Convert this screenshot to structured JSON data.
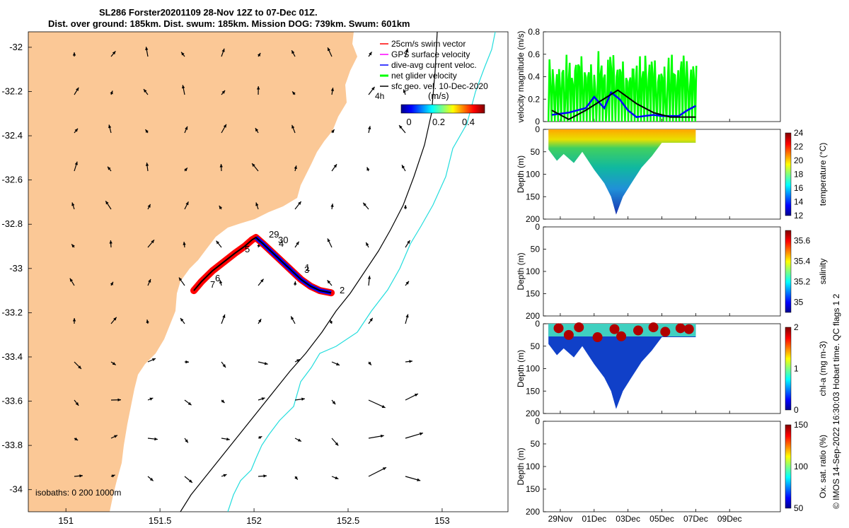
{
  "header": {
    "title_line1": "SL286 Forster20201109 28-Nov 12Z to 07-Dec 01Z.",
    "title_line2": "Dist. over ground: 185km. Dist. swum: 185km. Mission DOG: 739km. Swum: 601km"
  },
  "side_note": "© IMOS 14-Sep-2022 16:30:03 Hobart time. QC flags 1  2",
  "map": {
    "legend": [
      {
        "label": "25cm/s swim vector",
        "color": "#ff0000"
      },
      {
        "label": "GPS surface velocity",
        "color": "#ff00ff"
      },
      {
        "label": "dive-avg current veloc.",
        "color": "#0000ff"
      },
      {
        "label": "net glider velocity",
        "color": "#00ff00"
      },
      {
        "label": "sfc geo. vel. 10-Dec-2020",
        "color": "#000000"
      }
    ],
    "interval_label": "4h",
    "colorbar_unit": "(m/s)",
    "colorbar_ticks": [
      "0",
      "0.2",
      "0.4"
    ],
    "isobath_label": "isobaths: 0  200  1000m",
    "day_labels": [
      "29",
      "30",
      "4",
      "3",
      "1",
      "2",
      "5",
      "6",
      "7"
    ],
    "land_color": "#fbc896",
    "isobath_200_color": "#000000",
    "isobath_1000_color": "#22dddd"
  },
  "chart_data": [
    {
      "type": "scatter",
      "title": "Glider track map",
      "xlim": [
        150.8,
        153.35
      ],
      "ylim": [
        -34.1,
        -31.93
      ],
      "x_ticks": [
        "151",
        "151.5",
        "152",
        "152.5",
        "153"
      ],
      "y_ticks": [
        "-32",
        "-32.2",
        "-32.4",
        "-32.6",
        "-32.8",
        "-33",
        "-33.2",
        "-33.4",
        "-33.6",
        "-33.8",
        "-34"
      ],
      "track": {
        "lon": [
          151.68,
          151.72,
          151.78,
          151.84,
          151.9,
          151.95,
          151.99,
          152.01,
          152.05,
          152.1,
          152.15,
          152.2,
          152.25,
          152.3,
          152.35,
          152.41
        ],
        "lat": [
          -33.1,
          -33.06,
          -33.01,
          -32.97,
          -32.93,
          -32.9,
          -32.87,
          -32.86,
          -32.89,
          -32.93,
          -32.97,
          -33.01,
          -33.05,
          -33.08,
          -33.1,
          -33.11
        ]
      }
    },
    {
      "type": "line",
      "ylabel": "velocity magnitude (m/s)",
      "ylim": [
        0,
        0.8
      ],
      "y_ticks": [
        "0",
        "0.2",
        "0.4",
        "0.6",
        "0.8"
      ],
      "x_range_days": [
        0,
        14
      ],
      "series": [
        {
          "name": "net glider velocity",
          "color": "#00ff00",
          "x": [
            0.5,
            1.5,
            2.5,
            3.5,
            4.5,
            5.5,
            6.5,
            7.5,
            8.5,
            9.0
          ],
          "values": [
            0.35,
            0.42,
            0.5,
            0.35,
            0.55,
            0.48,
            0.62,
            0.45,
            0.38,
            0.3
          ]
        },
        {
          "name": "dive-avg current veloc.",
          "color": "#0000ff",
          "x": [
            0.5,
            1.5,
            2.5,
            3.0,
            3.6,
            4.0,
            4.5,
            5.0,
            5.5,
            6.0,
            6.5,
            7.0,
            7.5,
            8.0,
            8.5,
            9.0
          ],
          "values": [
            0.06,
            0.08,
            0.12,
            0.22,
            0.12,
            0.26,
            0.2,
            0.1,
            0.04,
            0.05,
            0.06,
            0.05,
            0.05,
            0.05,
            0.1,
            0.14
          ]
        },
        {
          "name": "sfc geo. vel.",
          "color": "#000000",
          "x": [
            0.5,
            1.5,
            2.5,
            4.4,
            5.5,
            6.5,
            7.5,
            9.0
          ],
          "values": [
            0.1,
            0.02,
            0.1,
            0.28,
            0.16,
            0.08,
            0.04,
            0.04
          ]
        }
      ]
    },
    {
      "type": "heatmap",
      "quantity": "temperature (°C)",
      "ylabel": "Depth (m)",
      "ylim": [
        200,
        0
      ],
      "y_ticks": [
        "0",
        "50",
        "100",
        "150",
        "200"
      ],
      "colorbar_ticks": [
        "12",
        "14",
        "16",
        "18",
        "20",
        "22",
        "24"
      ],
      "colorbar_range": [
        11,
        24.5
      ],
      "profile_days": [
        0.3,
        0.8,
        1.2,
        1.8,
        2.3,
        3.0,
        3.6,
        4.0,
        4.3,
        4.7,
        5.2,
        5.8,
        6.4,
        7.0,
        7.6,
        8.2,
        8.8,
        9.0
      ],
      "max_depth_m": [
        45,
        70,
        55,
        75,
        50,
        90,
        120,
        150,
        190,
        150,
        120,
        85,
        60,
        30,
        30,
        30,
        30,
        30
      ]
    },
    {
      "type": "heatmap",
      "quantity": "salinity",
      "ylabel": "Depth (m)",
      "ylim": [
        200,
        0
      ],
      "y_ticks": [
        "0",
        "50",
        "100",
        "150",
        "200"
      ],
      "colorbar_ticks": [
        "35",
        "35.2",
        "35.4",
        "35.6"
      ]
    },
    {
      "type": "heatmap",
      "quantity": "chl-a (mg m-3)",
      "ylabel": "Depth (m)",
      "ylim": [
        200,
        0
      ],
      "y_ticks": [
        "0",
        "50",
        "100",
        "150",
        "200"
      ],
      "colorbar_ticks": [
        "0",
        "1",
        "2"
      ]
    },
    {
      "type": "heatmap",
      "quantity": "Ox. sat. ratio (%)",
      "ylabel": "Depth (m)",
      "ylim": [
        200,
        0
      ],
      "y_ticks": [
        "0",
        "50",
        "100",
        "150",
        "200"
      ],
      "x_ticks": [
        "29Nov",
        "01Dec",
        "03Dec",
        "05Dec",
        "07Dec",
        "09Dec"
      ],
      "colorbar_ticks": [
        "50",
        "100",
        "150"
      ]
    }
  ]
}
